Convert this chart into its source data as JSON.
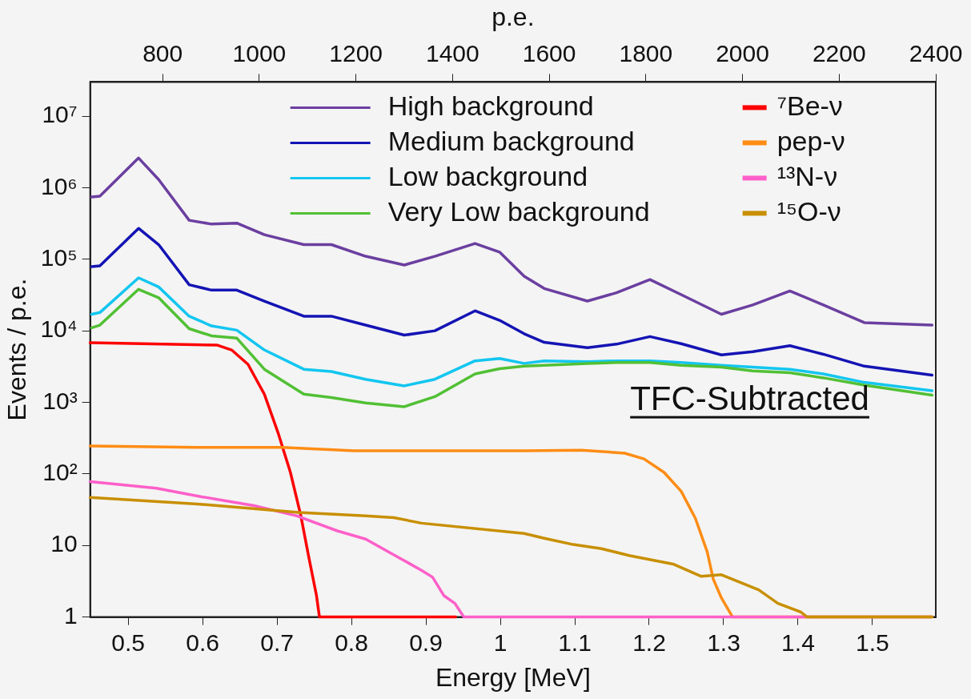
{
  "chart_data": {
    "type": "line",
    "xlabel": "Energy [MeV]",
    "ylabel": "Events / p.e.",
    "x2label": "p.e.",
    "xlim": [
      0.449,
      1.585
    ],
    "xticks": [
      {
        "value": 0.5,
        "label": "0.5"
      },
      {
        "value": 0.6,
        "label": "0.6"
      },
      {
        "value": 0.7,
        "label": "0.7"
      },
      {
        "value": 0.8,
        "label": "0.8"
      },
      {
        "value": 0.9,
        "label": "0.9"
      },
      {
        "value": 1,
        "label": "1"
      },
      {
        "value": 1.1,
        "label": "1.1"
      },
      {
        "value": 1.2,
        "label": "1.2"
      },
      {
        "value": 1.3,
        "label": "1.3"
      },
      {
        "value": 1.4,
        "label": "1.4"
      },
      {
        "value": 1.5,
        "label": "1.5"
      }
    ],
    "x2lim": [
      650,
      2400
    ],
    "x2ticks": [
      800,
      1000,
      1200,
      1400,
      1600,
      1800,
      2000,
      2200,
      2400
    ],
    "ylim": [
      1,
      30000000
    ],
    "yticks": [
      1,
      10,
      {
        "value": 100,
        "label": "10²"
      },
      {
        "value": 1000,
        "label": "10³"
      },
      {
        "value": 10000,
        "label": "10⁴"
      },
      {
        "value": 100000,
        "label": "10⁵"
      },
      {
        "value": 1000000,
        "label": "10⁶"
      },
      {
        "value": 10000000,
        "label": "10⁷"
      }
    ],
    "log": "y",
    "legend": "top",
    "marker": "none",
    "line_style": "solid",
    "annotations": [
      "TFC-Subtracted"
    ],
    "series": [
      {
        "name": "High background",
        "color": "#6b3fa0",
        "x": [
          0.451,
          0.462,
          0.514,
          0.541,
          0.582,
          0.612,
          0.646,
          0.683,
          0.736,
          0.773,
          0.819,
          0.871,
          0.912,
          0.966,
          0.999,
          1.032,
          1.059,
          1.117,
          1.156,
          1.201,
          1.243,
          1.297,
          1.339,
          1.389,
          1.434,
          1.489,
          1.58
        ],
        "values": [
          740000,
          760000,
          2600000,
          1300000,
          350000,
          310000,
          320000,
          220000,
          160000,
          160000,
          110000,
          83000,
          110000,
          166000,
          126000,
          58000,
          39000,
          26000,
          34000,
          52000,
          32000,
          17000,
          23000,
          36000,
          23000,
          13000,
          12000
        ]
      },
      {
        "name": "Medium background",
        "color": "#1414b4",
        "x": [
          0.451,
          0.462,
          0.514,
          0.541,
          0.582,
          0.612,
          0.646,
          0.683,
          0.736,
          0.773,
          0.819,
          0.871,
          0.912,
          0.966,
          0.999,
          1.032,
          1.059,
          1.117,
          1.156,
          1.201,
          1.243,
          1.297,
          1.339,
          1.389,
          1.434,
          1.489,
          1.58
        ],
        "values": [
          79000,
          81000,
          270000,
          160000,
          44000,
          37000,
          37000,
          26000,
          16000,
          16000,
          12000,
          8700,
          10000,
          19000,
          14000,
          9100,
          6900,
          5800,
          6500,
          8300,
          6600,
          4600,
          5100,
          6200,
          4700,
          3200,
          2400
        ]
      },
      {
        "name": "Low background",
        "color": "#12c6f0",
        "x": [
          0.451,
          0.462,
          0.514,
          0.541,
          0.582,
          0.612,
          0.646,
          0.683,
          0.736,
          0.773,
          0.819,
          0.871,
          0.912,
          0.966,
          0.999,
          1.032,
          1.059,
          1.117,
          1.156,
          1.201,
          1.243,
          1.297,
          1.339,
          1.389,
          1.434,
          1.489,
          1.58
        ],
        "values": [
          17000,
          18000,
          55000,
          41000,
          16000,
          11700,
          10200,
          5400,
          2900,
          2700,
          2100,
          1700,
          2100,
          3800,
          4100,
          3500,
          3800,
          3700,
          3800,
          3800,
          3600,
          3300,
          3100,
          2900,
          2500,
          1900,
          1450
        ]
      },
      {
        "name": "Very Low background",
        "color": "#52c034",
        "x": [
          0.451,
          0.462,
          0.514,
          0.541,
          0.582,
          0.612,
          0.646,
          0.683,
          0.736,
          0.773,
          0.819,
          0.871,
          0.912,
          0.966,
          0.999,
          1.032,
          1.059,
          1.117,
          1.156,
          1.201,
          1.243,
          1.297,
          1.339,
          1.389,
          1.434,
          1.489,
          1.58
        ],
        "values": [
          11000,
          12000,
          38000,
          29000,
          10700,
          8500,
          7900,
          2900,
          1300,
          1170,
          980,
          870,
          1200,
          2500,
          2950,
          3200,
          3300,
          3500,
          3600,
          3600,
          3300,
          3100,
          2750,
          2600,
          2200,
          1740,
          1260
        ]
      },
      {
        "name": "⁷Be-ν",
        "color": "#ff0000",
        "x": [
          0.449,
          0.62,
          0.639,
          0.661,
          0.683,
          0.702,
          0.718,
          0.732,
          0.743,
          0.753,
          0.757,
          0.94
        ],
        "values": [
          6800,
          6300,
          5400,
          3400,
          1300,
          360,
          105,
          26,
          6.6,
          2,
          1,
          1
        ]
      },
      {
        "name": "pep-ν",
        "color": "#ff8c14",
        "x": [
          0.449,
          0.593,
          0.707,
          0.804,
          1.032,
          1.109,
          1.167,
          1.193,
          1.22,
          1.243,
          1.262,
          1.278,
          1.286,
          1.297,
          1.312,
          1.58
        ],
        "values": [
          245,
          234,
          234,
          210,
          210,
          215,
          195,
          162,
          105,
          57,
          24,
          8.1,
          3.4,
          1.85,
          1,
          1
        ]
      },
      {
        "name": "¹³N-ν",
        "color": "#ff5fc8",
        "x": [
          0.449,
          0.538,
          0.593,
          0.669,
          0.726,
          0.781,
          0.819,
          0.857,
          0.894,
          0.909,
          0.924,
          0.939,
          0.951,
          1.58
        ],
        "values": [
          78,
          63,
          49,
          36,
          26,
          16,
          12.3,
          7.4,
          4.5,
          3.6,
          2,
          1.55,
          1,
          1
        ]
      },
      {
        "name": "¹⁵O-ν",
        "color": "#c89000",
        "x": [
          0.449,
          0.593,
          0.729,
          0.819,
          0.857,
          0.894,
          1.032,
          1.059,
          1.098,
          1.136,
          1.174,
          1.232,
          1.27,
          1.297,
          1.347,
          1.373,
          1.404,
          1.412,
          1.58
        ],
        "values": [
          47,
          38,
          29,
          26,
          24.5,
          20.5,
          14.7,
          12.6,
          10.3,
          9,
          7.2,
          5.5,
          3.7,
          3.9,
          2.4,
          1.55,
          1.17,
          1,
          1
        ]
      }
    ]
  }
}
